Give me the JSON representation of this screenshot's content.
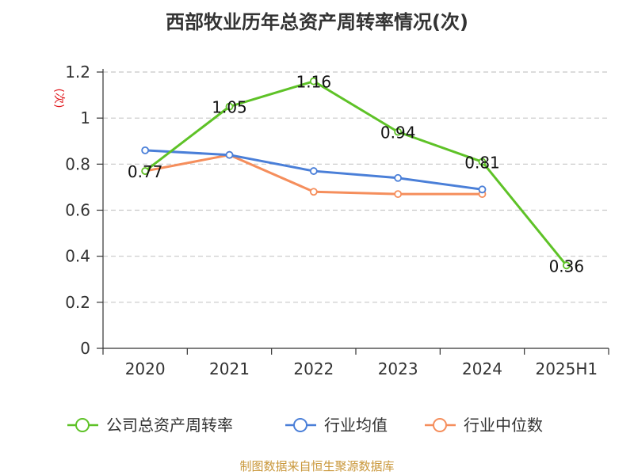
{
  "chart_data": {
    "type": "line",
    "title": "西部牧业历年总资产周转率情况(次)",
    "ylabel": "(次)",
    "xlabel": "",
    "categories": [
      "2020",
      "2021",
      "2022",
      "2023",
      "2024",
      "2025H1"
    ],
    "ylim": [
      0,
      1.2
    ],
    "yticks": [
      "0",
      "0.2",
      "0.4",
      "0.6",
      "0.8",
      "1",
      "1.2"
    ],
    "grid": true,
    "legend_position": "bottom",
    "series": [
      {
        "name": "公司总资产周转率",
        "color": "#5ec227",
        "values": [
          0.77,
          1.05,
          1.16,
          0.94,
          0.81,
          0.36
        ],
        "labels": [
          "0.77",
          "1.05",
          "1.16",
          "0.94",
          "0.81",
          "0.36"
        ]
      },
      {
        "name": "行业均值",
        "color": "#4a7fd8",
        "values": [
          0.86,
          0.84,
          0.77,
          0.74,
          0.69,
          null
        ]
      },
      {
        "name": "行业中位数",
        "color": "#f58e5c",
        "values": [
          0.77,
          0.84,
          0.68,
          0.67,
          0.67,
          null
        ]
      }
    ]
  },
  "source_text": "制图数据来自恒生聚源数据库"
}
